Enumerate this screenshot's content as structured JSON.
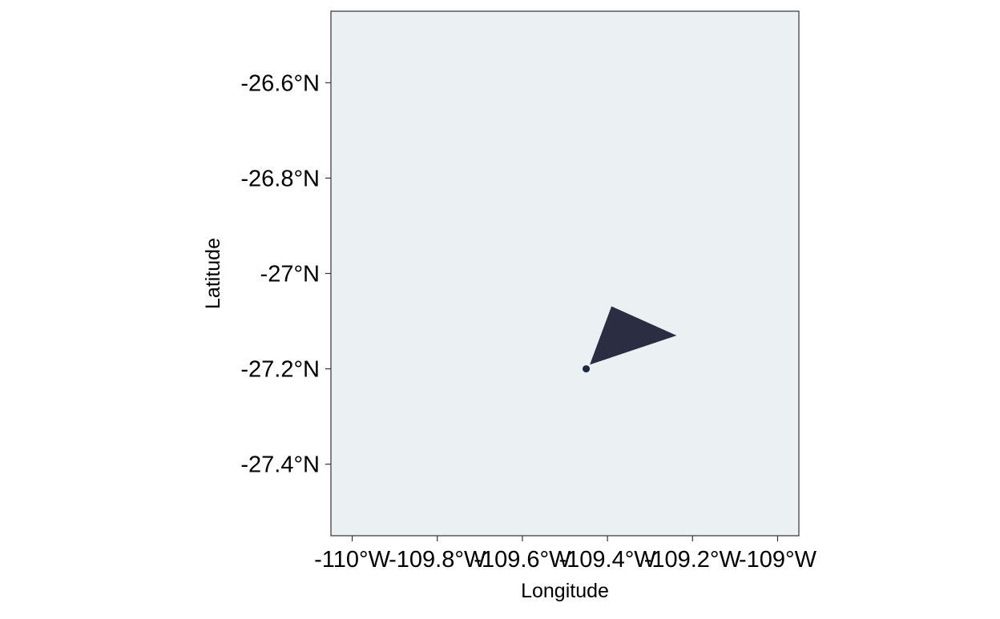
{
  "chart_data": {
    "type": "map",
    "xlabel": "Longitude",
    "ylabel": "Latitude",
    "xlim": [
      -110.05,
      -108.95
    ],
    "ylim": [
      -27.55,
      -26.45
    ],
    "x_ticks": [
      {
        "value": -110.0,
        "label": "-110°W"
      },
      {
        "value": -109.8,
        "label": "-109.8°W"
      },
      {
        "value": -109.6,
        "label": "-109.6°W"
      },
      {
        "value": -109.4,
        "label": "-109.4°W"
      },
      {
        "value": -109.2,
        "label": "-109.2°W"
      },
      {
        "value": -109.0,
        "label": "-109°W"
      }
    ],
    "y_ticks": [
      {
        "value": -26.6,
        "label": "-26.6°N"
      },
      {
        "value": -26.8,
        "label": "-26.8°N"
      },
      {
        "value": -27.0,
        "label": "-27°N"
      },
      {
        "value": -27.2,
        "label": "-27.2°N"
      },
      {
        "value": -27.4,
        "label": "-27.4°N"
      }
    ],
    "grid": false,
    "panel_fill": "#EBF0F2",
    "land_color": "#2B2D42",
    "point_color": "#1B2A41",
    "land_polygon": [
      {
        "lon": -109.44,
        "lat": -27.19
      },
      {
        "lon": -109.39,
        "lat": -27.07
      },
      {
        "lon": -109.24,
        "lat": -27.13
      }
    ],
    "points": [
      {
        "lon": -109.45,
        "lat": -27.2
      }
    ]
  }
}
